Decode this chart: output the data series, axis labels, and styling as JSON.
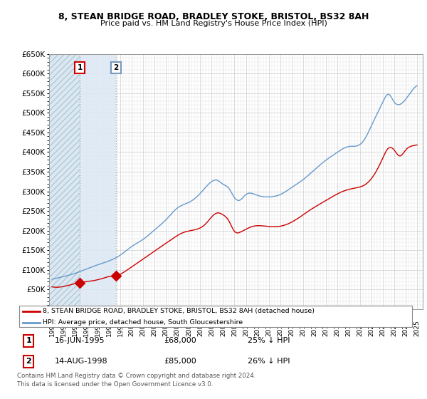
{
  "title": "8, STEAN BRIDGE ROAD, BRADLEY STOKE, BRISTOL, BS32 8AH",
  "subtitle": "Price paid vs. HM Land Registry's House Price Index (HPI)",
  "legend_line1": "8, STEAN BRIDGE ROAD, BRADLEY STOKE, BRISTOL, BS32 8AH (detached house)",
  "legend_line2": "HPI: Average price, detached house, South Gloucestershire",
  "transaction1_date": 1995.46,
  "transaction1_price": 68000,
  "transaction1_label": "1",
  "transaction1_text": "16-JUN-1995",
  "transaction1_pct": "25% ↓ HPI",
  "transaction2_date": 1998.62,
  "transaction2_price": 85000,
  "transaction2_label": "2",
  "transaction2_text": "14-AUG-1998",
  "transaction2_pct": "26% ↓ HPI",
  "footer": "Contains HM Land Registry data © Crown copyright and database right 2024.\nThis data is licensed under the Open Government Licence v3.0.",
  "red_color": "#cc0000",
  "blue_color": "#6699cc",
  "hatch_fill_color": "#dce8f0",
  "light_blue_fill": "#dce8f5",
  "ylim_min": 0,
  "ylim_max": 650000,
  "xlim_start": 1992.75,
  "xlim_end": 2025.5
}
